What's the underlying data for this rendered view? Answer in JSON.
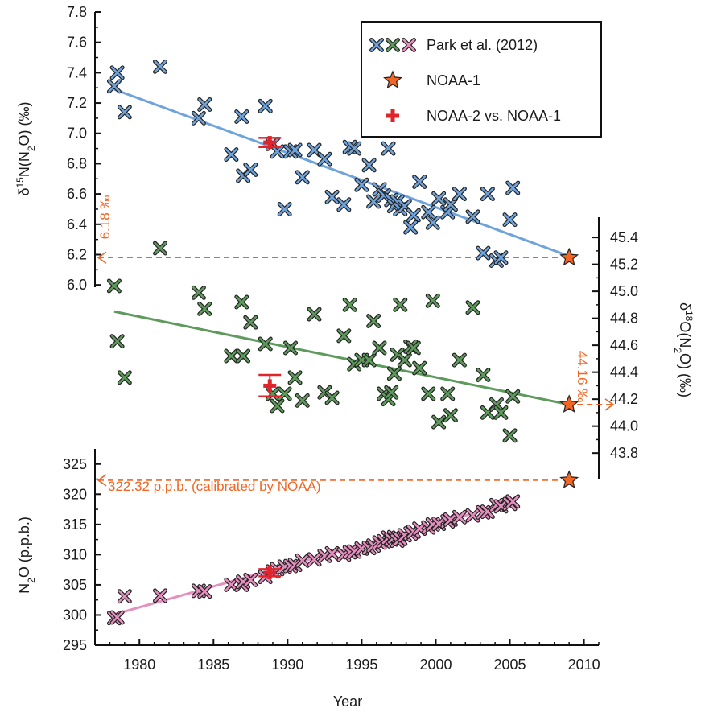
{
  "chart_data": {
    "type": "scatter",
    "xlabel": "Year",
    "xlim": [
      1977,
      2011
    ],
    "xticks": [
      1980,
      1985,
      1990,
      1995,
      2000,
      2005,
      2010
    ],
    "axes": {
      "d15N": {
        "label_parts": [
          "δ",
          "15",
          "N(N",
          "2",
          "O) (‰)"
        ],
        "ticks": [
          "6.0",
          "6.2",
          "6.4",
          "6.6",
          "6.8",
          "7.0",
          "7.2",
          "7.4",
          "7.6",
          "7.8"
        ],
        "ylim": [
          5.985,
          7.8
        ]
      },
      "d18O": {
        "label_parts": [
          "δ",
          "18",
          "O(N",
          "2",
          "O) (‰)"
        ],
        "ticks": [
          "43.8",
          "44.0",
          "44.2",
          "44.4",
          "44.6",
          "44.8",
          "45.0",
          "45.2",
          "45.4"
        ],
        "ylim": [
          43.61,
          45.55
        ]
      },
      "n2o": {
        "label_parts": [
          "N",
          "2",
          "O (p.p.b.)"
        ],
        "ticks": [
          "295",
          "300",
          "305",
          "310",
          "315",
          "320",
          "325"
        ],
        "ylim": [
          295,
          327.5
        ]
      }
    },
    "legend": {
      "position": "top-right",
      "entries": [
        {
          "label": "Park et al. (2012)",
          "marker": "x-triple"
        },
        {
          "label": "NOAA-1",
          "marker": "star"
        },
        {
          "label": "NOAA-2 vs. NOAA-1",
          "marker": "plus"
        }
      ]
    },
    "annotations": [
      {
        "text": "6.18 ‰",
        "value": 6.18
      },
      {
        "text": "44.16 ‰",
        "value": 44.16
      },
      {
        "text": "322.32 p.p.b. (calibrated by NOAA)",
        "value": 322.32
      }
    ],
    "series": [
      {
        "name": "Park et al. (2012)",
        "axis": "d15N",
        "color": "#6fa3dc",
        "points": [
          [
            1978.3,
            7.31
          ],
          [
            1978.5,
            7.4
          ],
          [
            1979.0,
            7.14
          ],
          [
            1981.4,
            7.44
          ],
          [
            1984.0,
            7.1
          ],
          [
            1984.4,
            7.19
          ],
          [
            1986.2,
            6.86
          ],
          [
            1986.9,
            7.11
          ],
          [
            1987.0,
            6.72
          ],
          [
            1987.5,
            6.76
          ],
          [
            1988.5,
            7.18
          ],
          [
            1989.0,
            6.93
          ],
          [
            1989.3,
            6.88
          ],
          [
            1989.8,
            6.5
          ],
          [
            1990.2,
            6.88
          ],
          [
            1990.5,
            6.89
          ],
          [
            1991.0,
            6.71
          ],
          [
            1991.8,
            6.89
          ],
          [
            1992.5,
            6.83
          ],
          [
            1993.0,
            6.58
          ],
          [
            1993.8,
            6.53
          ],
          [
            1994.2,
            6.91
          ],
          [
            1994.5,
            6.9
          ],
          [
            1995.0,
            6.66
          ],
          [
            1995.5,
            6.79
          ],
          [
            1995.8,
            6.55
          ],
          [
            1996.2,
            6.63
          ],
          [
            1996.5,
            6.59
          ],
          [
            1996.8,
            6.9
          ],
          [
            1997.0,
            6.56
          ],
          [
            1997.2,
            6.52
          ],
          [
            1997.4,
            6.55
          ],
          [
            1997.6,
            6.5
          ],
          [
            1997.9,
            6.52
          ],
          [
            1998.3,
            6.38
          ],
          [
            1998.5,
            6.46
          ],
          [
            1998.9,
            6.68
          ],
          [
            1999.5,
            6.48
          ],
          [
            1999.8,
            6.41
          ],
          [
            2000.2,
            6.57
          ],
          [
            2000.8,
            6.48
          ],
          [
            2001.0,
            6.53
          ],
          [
            2001.6,
            6.6
          ],
          [
            2002.5,
            6.45
          ],
          [
            2003.2,
            6.21
          ],
          [
            2003.5,
            6.6
          ],
          [
            2004.1,
            6.16
          ],
          [
            2004.4,
            6.18
          ],
          [
            2005.0,
            6.43
          ],
          [
            2005.2,
            6.64
          ]
        ],
        "trend": [
          [
            1978.3,
            7.29
          ],
          [
            2009.0,
            6.19
          ]
        ]
      },
      {
        "name": "Park et al. (2012)",
        "axis": "d18O",
        "color": "#5e9a5c",
        "points": [
          [
            1978.3,
            45.04
          ],
          [
            1978.5,
            44.63
          ],
          [
            1979.0,
            44.36
          ],
          [
            1981.4,
            45.32
          ],
          [
            1984.0,
            44.99
          ],
          [
            1984.4,
            44.87
          ],
          [
            1986.2,
            44.52
          ],
          [
            1986.9,
            44.92
          ],
          [
            1987.0,
            44.52
          ],
          [
            1987.5,
            44.77
          ],
          [
            1988.5,
            44.61
          ],
          [
            1989.0,
            44.24
          ],
          [
            1989.3,
            44.15
          ],
          [
            1989.8,
            44.24
          ],
          [
            1990.2,
            44.58
          ],
          [
            1990.5,
            44.36
          ],
          [
            1991.0,
            44.19
          ],
          [
            1991.8,
            44.83
          ],
          [
            1992.5,
            44.25
          ],
          [
            1993.0,
            44.21
          ],
          [
            1993.8,
            44.67
          ],
          [
            1994.2,
            44.9
          ],
          [
            1994.5,
            44.46
          ],
          [
            1995.0,
            44.49
          ],
          [
            1995.5,
            44.49
          ],
          [
            1995.8,
            44.78
          ],
          [
            1996.2,
            44.58
          ],
          [
            1996.5,
            44.24
          ],
          [
            1996.8,
            44.2
          ],
          [
            1997.0,
            44.25
          ],
          [
            1997.2,
            44.39
          ],
          [
            1997.4,
            44.53
          ],
          [
            1997.6,
            44.9
          ],
          [
            1997.9,
            44.49
          ],
          [
            1998.3,
            44.59
          ],
          [
            1998.5,
            44.58
          ],
          [
            1998.9,
            44.43
          ],
          [
            1999.5,
            44.24
          ],
          [
            1999.8,
            44.93
          ],
          [
            2000.2,
            44.03
          ],
          [
            2000.8,
            44.24
          ],
          [
            2001.0,
            44.08
          ],
          [
            2001.6,
            44.49
          ],
          [
            2002.5,
            44.88
          ],
          [
            2003.2,
            44.38
          ],
          [
            2003.5,
            44.1
          ],
          [
            2004.1,
            44.16
          ],
          [
            2004.4,
            44.1
          ],
          [
            2005.0,
            43.93
          ],
          [
            2005.2,
            44.22
          ]
        ],
        "trend": [
          [
            1978.3,
            44.85
          ],
          [
            2009.0,
            44.16
          ]
        ]
      },
      {
        "name": "Park et al. (2012)",
        "axis": "n2o",
        "color": "#e58fbf",
        "points": [
          [
            1978.3,
            299.5
          ],
          [
            1978.5,
            299.6
          ],
          [
            1979.0,
            303.1
          ],
          [
            1981.4,
            303.2
          ],
          [
            1984.0,
            304.0
          ],
          [
            1984.4,
            303.9
          ],
          [
            1986.2,
            305.0
          ],
          [
            1986.9,
            305.0
          ],
          [
            1987.0,
            305.5
          ],
          [
            1987.5,
            305.8
          ],
          [
            1988.5,
            306.3
          ],
          [
            1989.0,
            307.2
          ],
          [
            1989.3,
            307.6
          ],
          [
            1989.8,
            308.0
          ],
          [
            1990.2,
            308.1
          ],
          [
            1990.5,
            308.3
          ],
          [
            1991.0,
            309.0
          ],
          [
            1991.8,
            309.2
          ],
          [
            1992.5,
            309.8
          ],
          [
            1993.0,
            310.2
          ],
          [
            1993.8,
            310.0
          ],
          [
            1994.2,
            310.4
          ],
          [
            1994.5,
            310.5
          ],
          [
            1995.0,
            311.0
          ],
          [
            1995.5,
            311.1
          ],
          [
            1995.8,
            311.5
          ],
          [
            1996.2,
            312.0
          ],
          [
            1996.5,
            312.2
          ],
          [
            1996.8,
            312.8
          ],
          [
            1997.0,
            312.5
          ],
          [
            1997.2,
            312.9
          ],
          [
            1997.4,
            312.3
          ],
          [
            1997.6,
            312.6
          ],
          [
            1997.9,
            313.2
          ],
          [
            1998.3,
            313.5
          ],
          [
            1998.5,
            313.8
          ],
          [
            1998.9,
            314.3
          ],
          [
            1999.5,
            314.5
          ],
          [
            1999.8,
            315.0
          ],
          [
            2000.2,
            315.1
          ],
          [
            2000.8,
            315.5
          ],
          [
            2001.0,
            315.8
          ],
          [
            2001.6,
            316.2
          ],
          [
            2002.5,
            316.5
          ],
          [
            2003.2,
            317.0
          ],
          [
            2003.5,
            317.1
          ],
          [
            2004.1,
            318.2
          ],
          [
            2004.4,
            318.0
          ],
          [
            2005.0,
            318.4
          ],
          [
            2005.2,
            318.8
          ]
        ],
        "trend": [
          [
            1978.3,
            300.1
          ],
          [
            2005.2,
            318.7
          ]
        ]
      },
      {
        "name": "NOAA-1",
        "color": "#f26522",
        "points": [
          {
            "axis": "d15N",
            "x": 2009.0,
            "y": 6.18
          },
          {
            "axis": "d18O",
            "x": 2009.0,
            "y": 44.16
          },
          {
            "axis": "n2o",
            "x": 2009.0,
            "y": 322.32
          }
        ]
      },
      {
        "name": "NOAA-2 vs. NOAA-1",
        "color": "#e0242c",
        "points": [
          {
            "axis": "d15N",
            "x": 1988.8,
            "y": 6.94,
            "err": 0.03
          },
          {
            "axis": "d18O",
            "x": 1988.8,
            "y": 44.3,
            "err": 0.08
          },
          {
            "axis": "n2o",
            "x": 1988.8,
            "y": 307.0,
            "err": 0.6
          }
        ]
      }
    ]
  }
}
